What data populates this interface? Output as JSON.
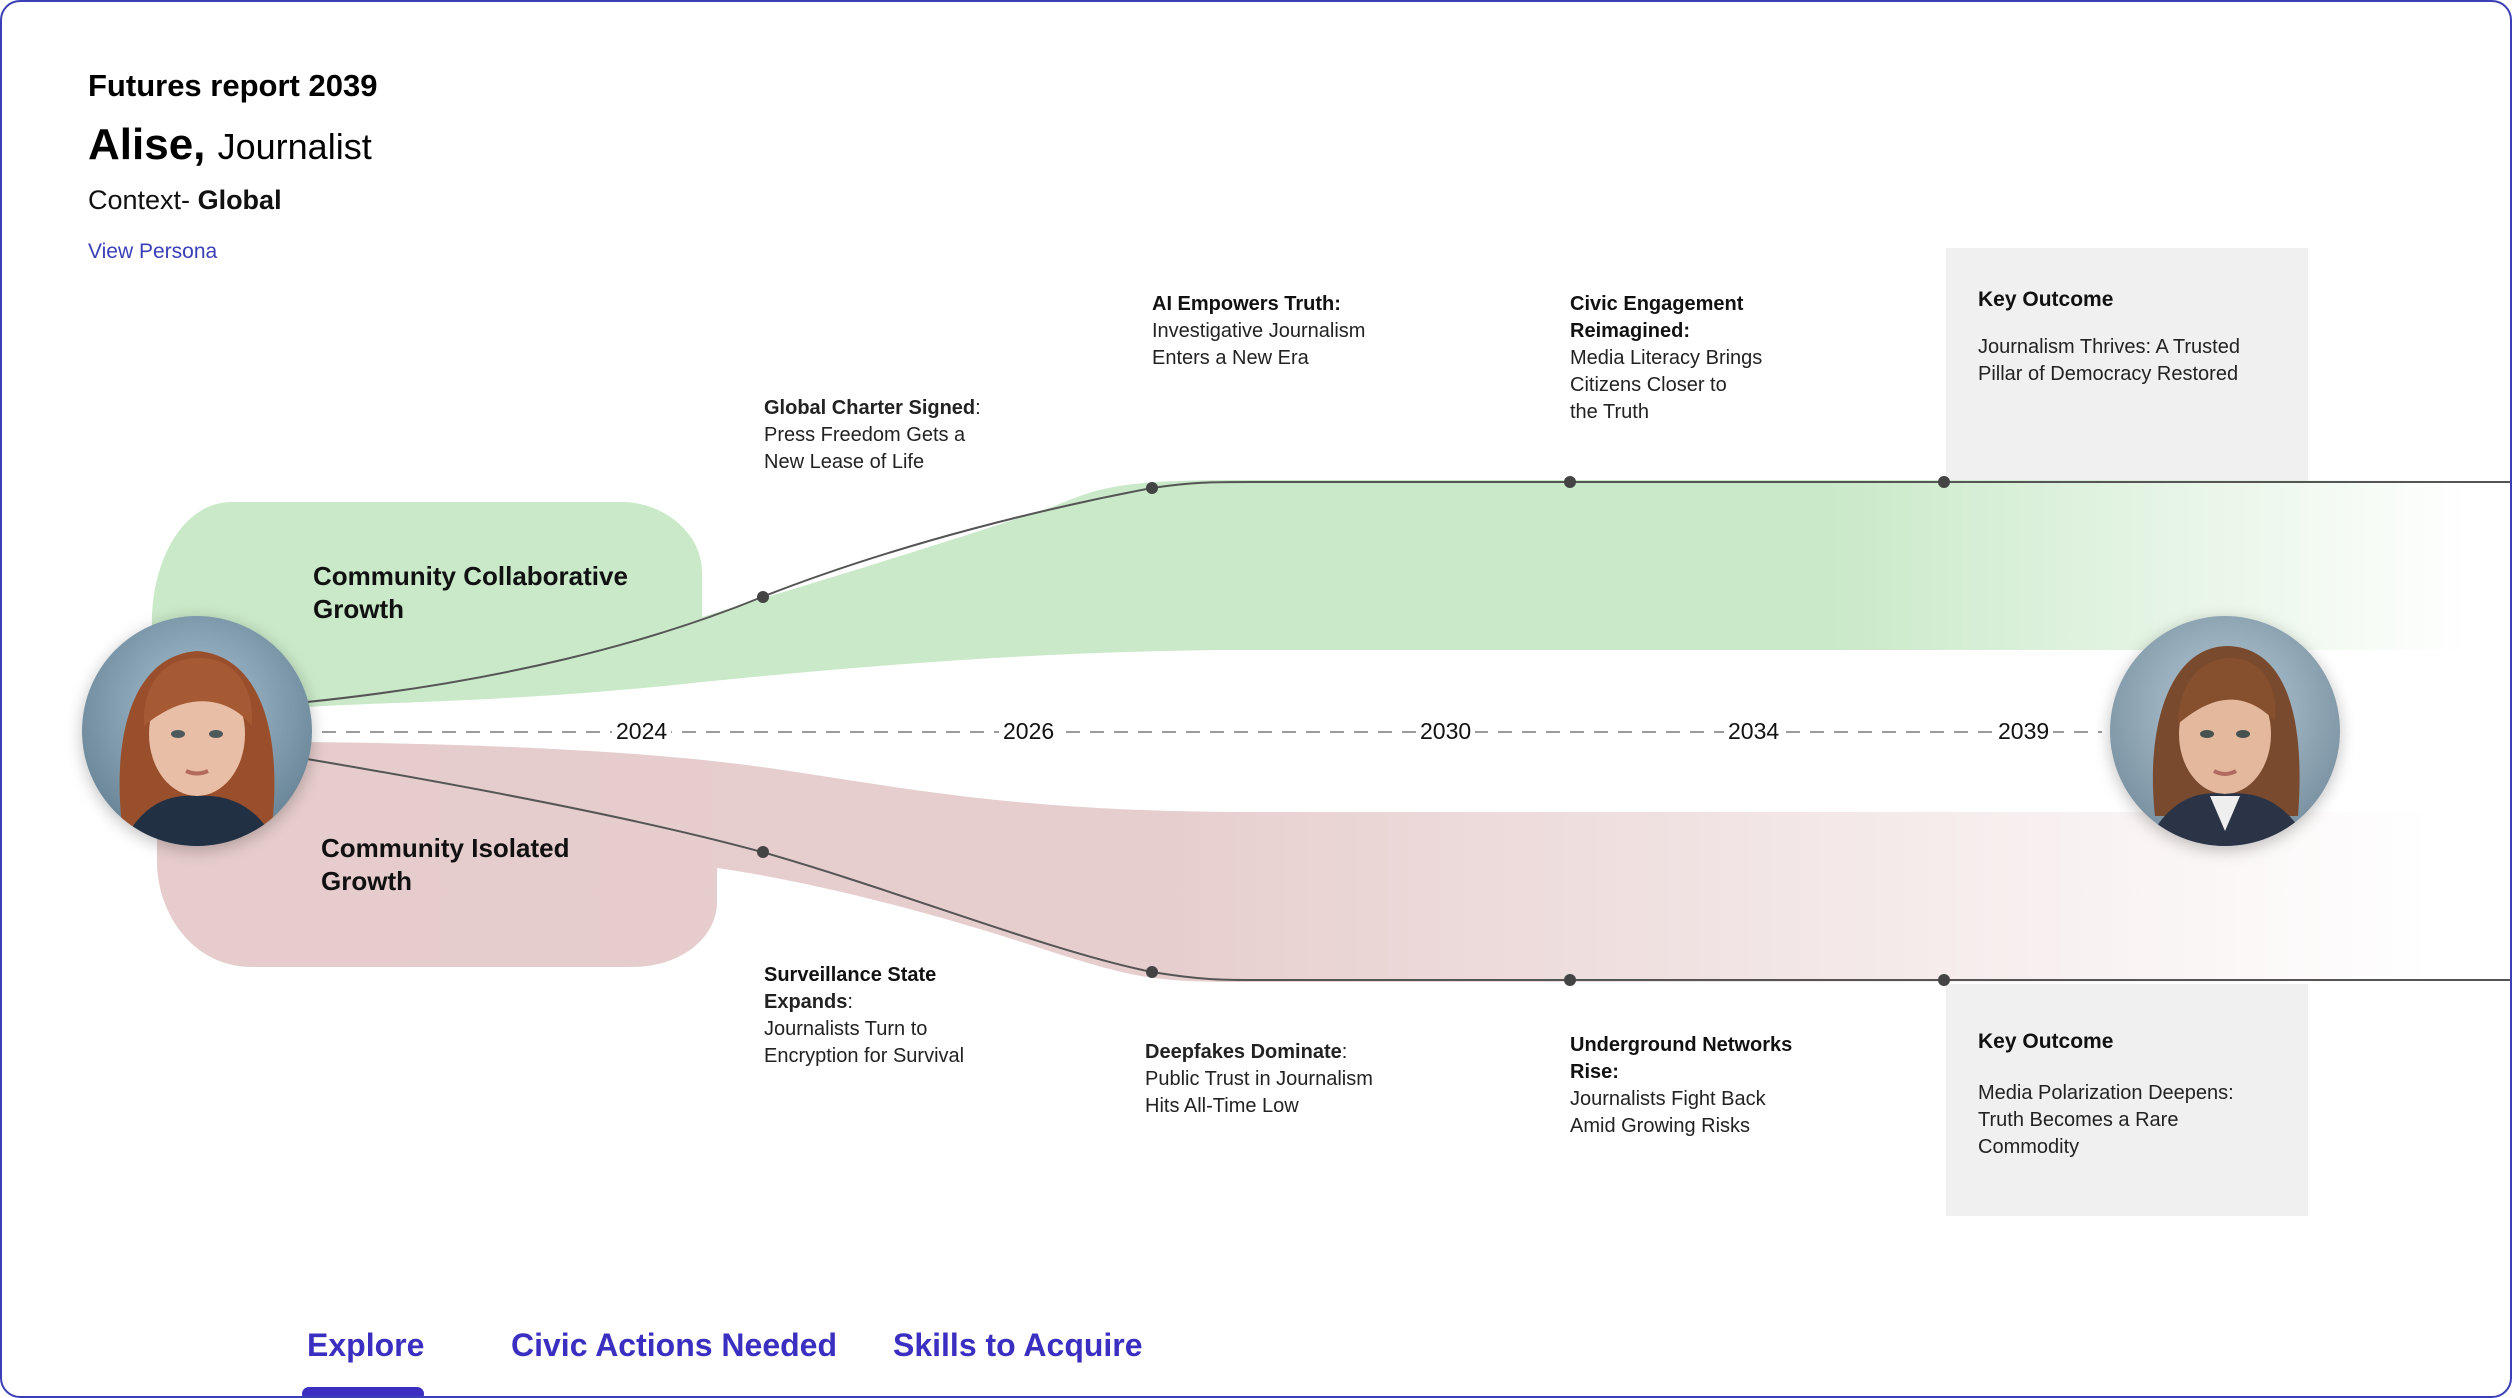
{
  "header": {
    "report_title": "Futures report 2039",
    "persona_name": "Alise,",
    "persona_role": "Journalist",
    "context_label": "Context-",
    "context_value": "Global",
    "view_link": "View Persona"
  },
  "branches": {
    "upper": {
      "label_line1": "Community Collaborative",
      "label_line2": "Growth",
      "color": "#c9e9c8"
    },
    "lower": {
      "label_line1": "Community Isolated",
      "label_line2": "Growth",
      "color": "#e6cccc"
    }
  },
  "timeline": {
    "years": [
      "2024",
      "2026",
      "2030",
      "2034",
      "2039"
    ]
  },
  "milestones_upper": [
    {
      "title": "Global Charter Signed",
      "suffix": ":",
      "lines": [
        "Press Freedom Gets a",
        "New Lease of Life"
      ]
    },
    {
      "title": "AI Empowers Truth:",
      "suffix": "",
      "lines": [
        "Investigative Journalism",
        "Enters a New Era"
      ]
    },
    {
      "title_line1": "Civic Engagement",
      "title_line2": "Reimagined:",
      "lines": [
        "Media Literacy Brings",
        "Citizens Closer to",
        "the Truth"
      ]
    }
  ],
  "milestones_lower": [
    {
      "title_line1": "Surveillance State",
      "title_line2": "Expands",
      "suffix": ":",
      "lines": [
        "Journalists Turn to",
        "Encryption for Survival"
      ]
    },
    {
      "title": "Deepfakes Dominate",
      "suffix": ":",
      "lines": [
        "Public Trust in Journalism",
        "Hits All-Time Low"
      ]
    },
    {
      "title_line1": "Underground Networks",
      "title_line2": "Rise:",
      "lines": [
        "Journalists Fight Back",
        "Amid Growing Risks"
      ]
    }
  ],
  "outcomes": {
    "upper": {
      "title": "Key Outcome",
      "line1": "Journalism Thrives: A Trusted",
      "line2": "Pillar of Democracy Restored"
    },
    "lower": {
      "title": "Key Outcome",
      "line1": "Media Polarization Deepens:",
      "line2": "Truth Becomes a Rare",
      "line3": "Commodity"
    }
  },
  "tabs": {
    "active": "Explore",
    "items": [
      {
        "label": "Explore"
      },
      {
        "label": "Civic Actions Needed"
      },
      {
        "label": "Skills to Acquire"
      }
    ],
    "accent": "#3a2fc0"
  },
  "colors": {
    "frame_border": "#3a3fb8",
    "outcome_bg": "#f0f0f0",
    "line": "#555555"
  }
}
